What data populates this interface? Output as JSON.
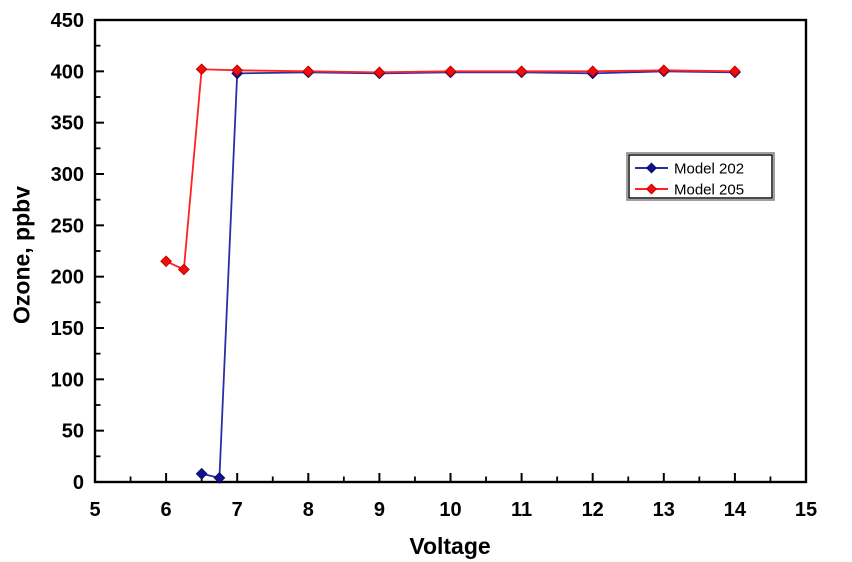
{
  "chart_data": {
    "type": "line",
    "title": "",
    "xlabel": "Voltage",
    "ylabel": "Ozone, ppbv",
    "xlim": [
      5,
      15
    ],
    "ylim": [
      0,
      450
    ],
    "grid": false,
    "legend_position": "inside-upper-right",
    "x_ticks": [
      5,
      6,
      7,
      8,
      9,
      10,
      11,
      12,
      13,
      14,
      15
    ],
    "x_minor_ticks": [
      5.5,
      6.5,
      7.5,
      8.5,
      9.5,
      10.5,
      11.5,
      12.5,
      13.5,
      14.5
    ],
    "y_ticks": [
      0,
      50,
      100,
      150,
      200,
      250,
      300,
      350,
      400,
      450
    ],
    "y_minor_ticks": [
      25,
      75,
      125,
      175,
      225,
      275,
      325,
      375,
      425
    ],
    "axis_color": "#000000",
    "series": [
      {
        "name": "Model 202",
        "marker": "diamond",
        "color": "#2D2DA6",
        "marker_color": "#12128F",
        "marker_edge": "#0A0A6E",
        "points": [
          [
            6.5,
            8
          ],
          [
            6.75,
            4
          ],
          [
            7,
            398
          ],
          [
            8,
            399
          ],
          [
            9,
            398
          ],
          [
            10,
            399
          ],
          [
            11,
            399
          ],
          [
            12,
            398
          ],
          [
            13,
            400
          ],
          [
            14,
            399
          ]
        ]
      },
      {
        "name": "Model 205",
        "marker": "diamond",
        "color": "#FF2222",
        "marker_color": "#F20D0D",
        "marker_edge": "#C80000",
        "points": [
          [
            6,
            215
          ],
          [
            6.25,
            207
          ],
          [
            6.5,
            402
          ],
          [
            7,
            401
          ],
          [
            8,
            400
          ],
          [
            9,
            399
          ],
          [
            10,
            400
          ],
          [
            11,
            400
          ],
          [
            12,
            400
          ],
          [
            13,
            401
          ],
          [
            14,
            400
          ]
        ]
      }
    ],
    "legend": {
      "entries": [
        "Model 202",
        "Model 205"
      ],
      "border": true
    }
  }
}
